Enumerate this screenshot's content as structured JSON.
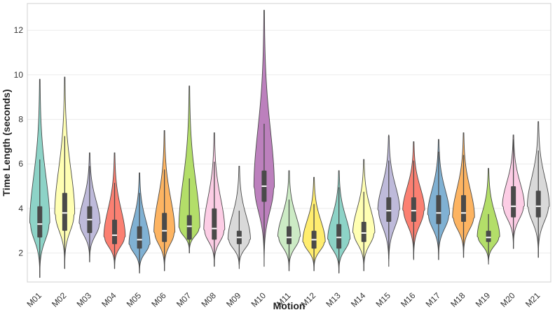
{
  "chart_data": {
    "type": "violin",
    "title": "",
    "xlabel": "Motion",
    "ylabel": "Time Length (seconds)",
    "ylim": [
      0.7,
      13.2
    ],
    "yticks": [
      2,
      4,
      6,
      8,
      10,
      12
    ],
    "grid": true,
    "legend": "none",
    "categories": [
      "M01",
      "M02",
      "M03",
      "M04",
      "M05",
      "M06",
      "M07",
      "M08",
      "M09",
      "M10",
      "M11",
      "M12",
      "M13",
      "M14",
      "M15",
      "M16",
      "M17",
      "M18",
      "M19",
      "M20",
      "M21"
    ],
    "colors": [
      "#8dd3c7",
      "#ffffb3",
      "#bebada",
      "#fb8072",
      "#80b1d3",
      "#fdb462",
      "#b3de69",
      "#fccde5",
      "#d9d9d9",
      "#bc80bd",
      "#ccebc5",
      "#ffed6f",
      "#8dd3c7",
      "#ffffb3",
      "#bebada",
      "#fb8072",
      "#80b1d3",
      "#fdb462",
      "#b3de69",
      "#fccde5",
      "#d9d9d9"
    ],
    "series": [
      {
        "name": "M01",
        "min": 0.9,
        "q1": 2.7,
        "median": 3.3,
        "q3": 4.1,
        "max": 9.8,
        "mode": 3.3,
        "width": 0.82
      },
      {
        "name": "M02",
        "min": 1.3,
        "q1": 3.0,
        "median": 3.8,
        "q3": 4.7,
        "max": 9.9,
        "mode": 3.7,
        "width": 0.82
      },
      {
        "name": "M03",
        "min": 1.6,
        "q1": 2.9,
        "median": 3.5,
        "q3": 4.1,
        "max": 6.5,
        "mode": 3.3,
        "width": 0.86
      },
      {
        "name": "M04",
        "min": 1.3,
        "q1": 2.4,
        "median": 2.8,
        "q3": 3.5,
        "max": 6.5,
        "mode": 2.7,
        "width": 0.88
      },
      {
        "name": "M05",
        "min": 1.1,
        "q1": 2.2,
        "median": 2.6,
        "q3": 3.2,
        "max": 5.6,
        "mode": 2.4,
        "width": 0.86
      },
      {
        "name": "M06",
        "min": 1.2,
        "q1": 2.5,
        "median": 3.0,
        "q3": 3.8,
        "max": 7.5,
        "mode": 2.9,
        "width": 0.86
      },
      {
        "name": "M07",
        "min": 2.0,
        "q1": 2.6,
        "median": 3.2,
        "q3": 3.7,
        "max": 9.5,
        "mode": 3.1,
        "width": 0.86
      },
      {
        "name": "M08",
        "min": 1.4,
        "q1": 2.6,
        "median": 3.1,
        "q3": 4.0,
        "max": 7.4,
        "mode": 3.0,
        "width": 0.86
      },
      {
        "name": "M09",
        "min": 1.3,
        "q1": 2.4,
        "median": 2.7,
        "q3": 3.0,
        "max": 5.9,
        "mode": 2.6,
        "width": 0.92
      },
      {
        "name": "M10",
        "min": 1.4,
        "q1": 4.3,
        "median": 5.0,
        "q3": 5.7,
        "max": 12.9,
        "mode": 4.9,
        "width": 0.84
      },
      {
        "name": "M11",
        "min": 1.2,
        "q1": 2.4,
        "median": 2.7,
        "q3": 3.2,
        "max": 5.7,
        "mode": 2.7,
        "width": 0.92
      },
      {
        "name": "M12",
        "min": 1.2,
        "q1": 2.2,
        "median": 2.6,
        "q3": 3.0,
        "max": 5.4,
        "mode": 2.5,
        "width": 0.92
      },
      {
        "name": "M13",
        "min": 1.1,
        "q1": 2.2,
        "median": 2.7,
        "q3": 3.3,
        "max": 5.7,
        "mode": 2.6,
        "width": 0.92
      },
      {
        "name": "M14",
        "min": 1.2,
        "q1": 2.5,
        "median": 2.9,
        "q3": 3.4,
        "max": 6.2,
        "mode": 2.9,
        "width": 0.9
      },
      {
        "name": "M15",
        "min": 1.4,
        "q1": 3.4,
        "median": 3.9,
        "q3": 4.5,
        "max": 7.3,
        "mode": 3.9,
        "width": 0.9
      },
      {
        "name": "M16",
        "min": 1.7,
        "q1": 3.4,
        "median": 3.9,
        "q3": 4.5,
        "max": 7.0,
        "mode": 3.9,
        "width": 0.9
      },
      {
        "name": "M17",
        "min": 1.7,
        "q1": 3.3,
        "median": 3.8,
        "q3": 4.6,
        "max": 7.1,
        "mode": 3.7,
        "width": 0.9
      },
      {
        "name": "M18",
        "min": 1.8,
        "q1": 3.4,
        "median": 3.8,
        "q3": 4.6,
        "max": 7.4,
        "mode": 3.6,
        "width": 0.9
      },
      {
        "name": "M19",
        "min": 1.5,
        "q1": 2.5,
        "median": 2.7,
        "q3": 3.0,
        "max": 5.8,
        "mode": 2.7,
        "width": 0.92
      },
      {
        "name": "M20",
        "min": 2.2,
        "q1": 3.6,
        "median": 4.1,
        "q3": 5.0,
        "max": 7.3,
        "mode": 4.1,
        "width": 0.9
      },
      {
        "name": "M21",
        "min": 1.8,
        "q1": 3.6,
        "median": 4.1,
        "q3": 4.8,
        "max": 7.9,
        "mode": 4.1,
        "width": 0.9
      }
    ]
  }
}
